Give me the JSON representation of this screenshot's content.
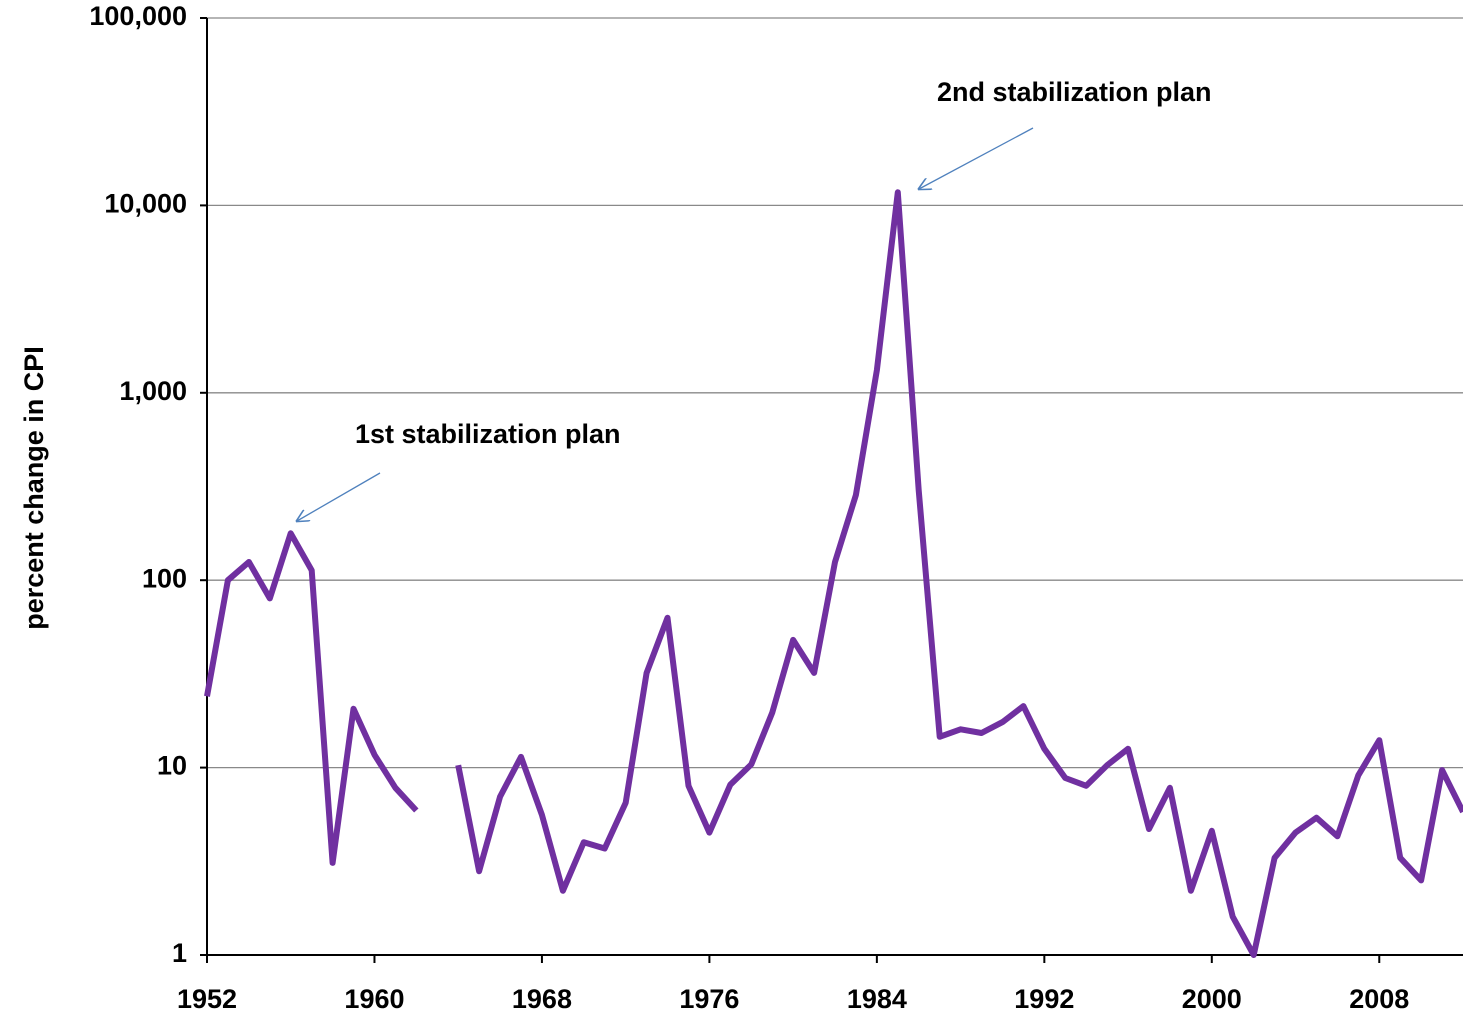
{
  "chart_data": {
    "type": "line",
    "y_label": "percent change in CPI",
    "annotations": [
      "1st stabilization plan",
      "2nd stabilization plan"
    ],
    "x": [
      1952,
      1953,
      1954,
      1955,
      1956,
      1957,
      1958,
      1959,
      1960,
      1961,
      1962,
      1963,
      1964,
      1965,
      1966,
      1967,
      1968,
      1969,
      1970,
      1971,
      1972,
      1973,
      1974,
      1975,
      1976,
      1977,
      1978,
      1979,
      1980,
      1981,
      1982,
      1983,
      1984,
      1985,
      1986,
      1987,
      1988,
      1989,
      1990,
      1991,
      1992,
      1993,
      1994,
      1995,
      1996,
      1997,
      1998,
      1999,
      2000,
      2001,
      2002,
      2003,
      2004,
      2005,
      2006,
      2007,
      2008,
      2009,
      2010,
      2011,
      2012
    ],
    "series": [
      {
        "name": "CPI",
        "color": "#7030a0",
        "values": [
          24,
          100,
          125,
          80,
          178,
          113,
          3.1,
          20.6,
          11.7,
          7.8,
          5.9,
          null,
          10.3,
          2.8,
          7.0,
          11.4,
          5.6,
          2.2,
          4.0,
          3.7,
          6.5,
          32,
          63,
          8.0,
          4.5,
          8.1,
          10.4,
          19.6,
          48,
          32,
          125,
          285,
          1324,
          11750,
          302,
          14.6,
          16,
          15.3,
          17.5,
          21.3,
          12.6,
          8.8,
          8.0,
          10.3,
          12.6,
          4.7,
          7.8,
          2.2,
          4.6,
          1.6,
          1.0,
          3.3,
          4.5,
          5.4,
          4.3,
          9.1,
          14,
          3.3,
          2.5,
          9.7,
          5.8
        ]
      }
    ],
    "xlim": [
      1952,
      2012
    ],
    "xticks": [
      1952,
      1960,
      1968,
      1976,
      1984,
      1992,
      2000,
      2008
    ],
    "ylim": [
      1,
      100000
    ],
    "yticks": [
      1,
      10,
      100,
      {
        "value": 1000,
        "label": "1,000"
      },
      {
        "value": 10000,
        "label": "10,000"
      },
      {
        "value": 100000,
        "label": "100,000"
      }
    ],
    "log_y": true,
    "grid": true
  }
}
